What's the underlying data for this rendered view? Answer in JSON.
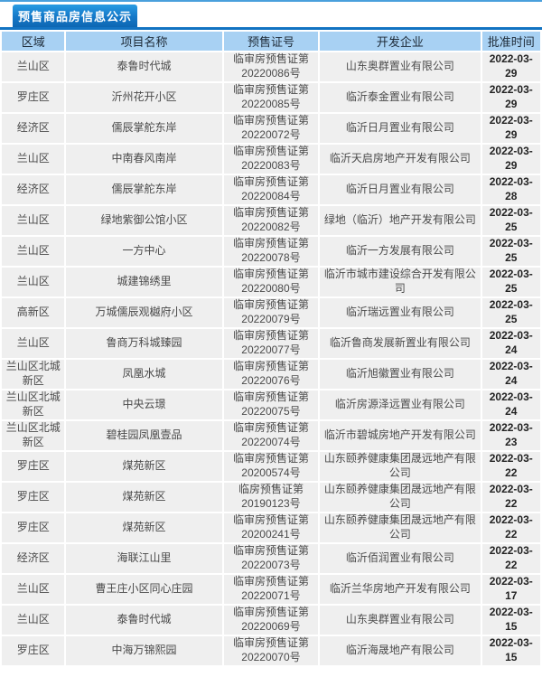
{
  "tab": {
    "title": "预售商品房信息公示"
  },
  "colors": {
    "tab_blue": "#1478c8",
    "underline_blue": "#1273c2",
    "header_blue": "#a8d1f3",
    "row_gray": "#efefef"
  },
  "table": {
    "headers": [
      "区域",
      "项目名称",
      "预售证号",
      "开发企业",
      "批准时间"
    ],
    "column_keys": [
      "region",
      "project",
      "cert",
      "developer",
      "date"
    ],
    "rows": [
      {
        "region": "兰山区",
        "project": "泰鲁时代城",
        "cert": "临审房预售证第20220086号",
        "developer": "山东奥群置业有限公司",
        "date": "2022-03-29"
      },
      {
        "region": "罗庄区",
        "project": "沂州花开小区",
        "cert": "临审房预售证第20220085号",
        "developer": "临沂泰金置业有限公司",
        "date": "2022-03-29"
      },
      {
        "region": "经济区",
        "project": "儒辰掌舵东岸",
        "cert": "临审房预售证第20220072号",
        "developer": "临沂日月置业有限公司",
        "date": "2022-03-29"
      },
      {
        "region": "兰山区",
        "project": "中南春风南岸",
        "cert": "临审房预售证第20220083号",
        "developer": "临沂天启房地产开发有限公司",
        "date": "2022-03-29"
      },
      {
        "region": "经济区",
        "project": "儒辰掌舵东岸",
        "cert": "临审房预售证第20220084号",
        "developer": "临沂日月置业有限公司",
        "date": "2022-03-28"
      },
      {
        "region": "兰山区",
        "project": "绿地紫御公馆小区",
        "cert": "临审房预售证第20220082号",
        "developer": "绿地（临沂）地产开发有限公司",
        "date": "2022-03-25"
      },
      {
        "region": "兰山区",
        "project": "一方中心",
        "cert": "临审房预售证第20220078号",
        "developer": "临沂一方发展有限公司",
        "date": "2022-03-25"
      },
      {
        "region": "兰山区",
        "project": "城建锦绣里",
        "cert": "临审房预售证第20220080号",
        "developer": "临沂市城市建设综合开发有限公司",
        "date": "2022-03-25"
      },
      {
        "region": "高新区",
        "project": "万城儒辰观樾府小区",
        "cert": "临审房预售证第20220079号",
        "developer": "临沂瑞远置业有限公司",
        "date": "2022-03-25"
      },
      {
        "region": "兰山区",
        "project": "鲁商万科城臻园",
        "cert": "临审房预售证第20220077号",
        "developer": "临沂鲁商发展新置业有限公司",
        "date": "2022-03-24"
      },
      {
        "region": "兰山区北城新区",
        "project": "凤凰水城",
        "cert": "临审房预售证第20220076号",
        "developer": "临沂旭徽置业有限公司",
        "date": "2022-03-24"
      },
      {
        "region": "兰山区北城新区",
        "project": "中央云璟",
        "cert": "临审房预售证第20220075号",
        "developer": "临沂房源泽远置业有限公司",
        "date": "2022-03-24"
      },
      {
        "region": "兰山区北城新区",
        "project": "碧桂园凤凰壹品",
        "cert": "临审房预售证第20220074号",
        "developer": "临沂市碧城房地产开发有限公司",
        "date": "2022-03-23"
      },
      {
        "region": "罗庄区",
        "project": "煤苑新区",
        "cert": "临审房预售证第20200574号",
        "developer": "山东颐养健康集团晟远地产有限公司",
        "date": "2022-03-22"
      },
      {
        "region": "罗庄区",
        "project": "煤苑新区",
        "cert": "临房预售证第20190123号",
        "developer": "山东颐养健康集团晟远地产有限公司",
        "date": "2022-03-22"
      },
      {
        "region": "罗庄区",
        "project": "煤苑新区",
        "cert": "临审房预售证第20200241号",
        "developer": "山东颐养健康集团晟远地产有限公司",
        "date": "2022-03-22"
      },
      {
        "region": "经济区",
        "project": "海联江山里",
        "cert": "临审房预售证第20220073号",
        "developer": "临沂佰润置业有限公司",
        "date": "2022-03-22"
      },
      {
        "region": "兰山区",
        "project": "曹王庄小区同心庄园",
        "cert": "临审房预售证第20220071号",
        "developer": "临沂兰华房地产开发有限公司",
        "date": "2022-03-17"
      },
      {
        "region": "兰山区",
        "project": "泰鲁时代城",
        "cert": "临审房预售证第20220069号",
        "developer": "山东奥群置业有限公司",
        "date": "2022-03-15"
      },
      {
        "region": "罗庄区",
        "project": "中海万锦熙园",
        "cert": "临审房预售证第20220070号",
        "developer": "临沂海晟地产有限公司",
        "date": "2022-03-15"
      }
    ]
  }
}
